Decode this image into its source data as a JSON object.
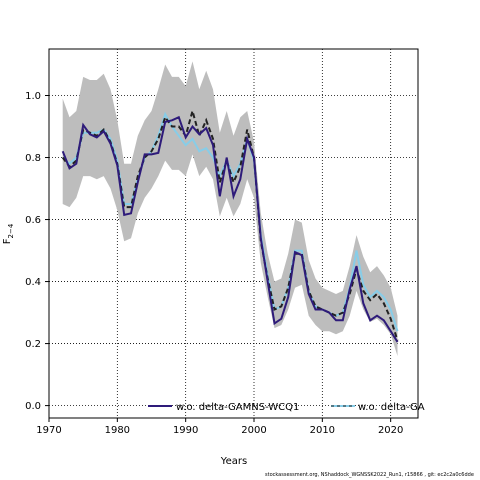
{
  "chart_data": {
    "type": "line",
    "xlabel": "Years",
    "ylabel_main": "F",
    "ylabel_sub": "2−4",
    "xlim": [
      1970,
      2024
    ],
    "ylim": [
      -0.04,
      1.15
    ],
    "xticks": [
      1970,
      1980,
      1990,
      2000,
      2010,
      2020
    ],
    "yticks": [
      0.0,
      0.2,
      0.4,
      0.6,
      0.8,
      1.0
    ],
    "grid": "dotted",
    "legend_position": "bottom",
    "colors": {
      "band": "#bdbdbd",
      "dark_line": "#2e1b7a",
      "light_line": "#87cde8",
      "dashed_line": "#222222"
    },
    "x": [
      1972,
      1973,
      1974,
      1975,
      1976,
      1977,
      1978,
      1979,
      1980,
      1981,
      1982,
      1983,
      1984,
      1985,
      1986,
      1987,
      1988,
      1989,
      1990,
      1991,
      1992,
      1993,
      1994,
      1995,
      1996,
      1997,
      1998,
      1999,
      2000,
      2001,
      2002,
      2003,
      2004,
      2005,
      2006,
      2007,
      2008,
      2009,
      2010,
      2011,
      2012,
      2013,
      2014,
      2015,
      2016,
      2017,
      2018,
      2019,
      2020,
      2021
    ],
    "band_upper": [
      0.99,
      0.93,
      0.95,
      1.06,
      1.05,
      1.05,
      1.07,
      1.02,
      0.92,
      0.78,
      0.78,
      0.87,
      0.92,
      0.95,
      1.02,
      1.1,
      1.06,
      1.06,
      1.03,
      1.11,
      1.02,
      1.08,
      1.02,
      0.88,
      0.95,
      0.87,
      0.93,
      0.95,
      0.85,
      0.62,
      0.49,
      0.4,
      0.41,
      0.49,
      0.6,
      0.59,
      0.47,
      0.41,
      0.38,
      0.37,
      0.36,
      0.37,
      0.45,
      0.55,
      0.48,
      0.43,
      0.45,
      0.42,
      0.38,
      0.29
    ],
    "band_lower": [
      0.65,
      0.64,
      0.67,
      0.74,
      0.74,
      0.73,
      0.74,
      0.7,
      0.63,
      0.53,
      0.54,
      0.62,
      0.67,
      0.7,
      0.74,
      0.79,
      0.76,
      0.76,
      0.74,
      0.81,
      0.74,
      0.77,
      0.73,
      0.61,
      0.67,
      0.61,
      0.65,
      0.73,
      0.67,
      0.46,
      0.35,
      0.25,
      0.26,
      0.31,
      0.38,
      0.39,
      0.29,
      0.26,
      0.24,
      0.24,
      0.23,
      0.24,
      0.29,
      0.37,
      0.31,
      0.27,
      0.28,
      0.26,
      0.23,
      0.16
    ],
    "series": [
      {
        "name": "w.o. delta-GAMNS-WCQ1",
        "style": "solid-dark",
        "values": [
          0.82,
          0.765,
          0.78,
          0.905,
          0.875,
          0.865,
          0.885,
          0.845,
          0.775,
          0.615,
          0.62,
          0.72,
          0.81,
          0.81,
          0.815,
          0.915,
          0.92,
          0.93,
          0.865,
          0.9,
          0.875,
          0.895,
          0.84,
          0.675,
          0.8,
          0.675,
          0.73,
          0.86,
          0.8,
          0.54,
          0.4,
          0.265,
          0.28,
          0.35,
          0.495,
          0.485,
          0.36,
          0.31,
          0.31,
          0.3,
          0.275,
          0.275,
          0.375,
          0.45,
          0.33,
          0.275,
          0.29,
          0.275,
          0.24,
          0.205
        ]
      },
      {
        "name": "w.o. delta-GA",
        "style": "solid-light",
        "values": [
          0.8,
          0.78,
          0.8,
          0.88,
          0.88,
          0.88,
          0.89,
          0.86,
          0.79,
          0.65,
          0.65,
          0.73,
          0.8,
          0.82,
          0.87,
          0.94,
          0.9,
          0.87,
          0.84,
          0.86,
          0.82,
          0.83,
          0.8,
          0.74,
          0.79,
          0.74,
          0.78,
          0.86,
          0.79,
          0.55,
          0.42,
          0.31,
          0.32,
          0.38,
          0.5,
          0.5,
          0.37,
          0.32,
          0.31,
          0.3,
          0.29,
          0.3,
          0.38,
          0.5,
          0.39,
          0.35,
          0.37,
          0.35,
          0.31,
          0.24
        ]
      },
      {
        "name": "",
        "style": "dashed",
        "values": [
          0.8,
          0.77,
          0.79,
          0.89,
          0.88,
          0.87,
          0.89,
          0.85,
          0.78,
          0.64,
          0.64,
          0.74,
          0.8,
          0.82,
          0.86,
          0.93,
          0.9,
          0.9,
          0.87,
          0.95,
          0.87,
          0.92,
          0.86,
          0.72,
          0.79,
          0.72,
          0.77,
          0.89,
          0.8,
          0.53,
          0.41,
          0.31,
          0.32,
          0.38,
          0.49,
          0.49,
          0.37,
          0.32,
          0.31,
          0.3,
          0.29,
          0.3,
          0.36,
          0.44,
          0.37,
          0.34,
          0.36,
          0.33,
          0.28,
          0.21
        ]
      }
    ]
  },
  "footer": {
    "text": "stockassessment.org, NShaddock_WGNSSK2022_Run1, r15866 , git: ec2c2a0c6dde"
  }
}
